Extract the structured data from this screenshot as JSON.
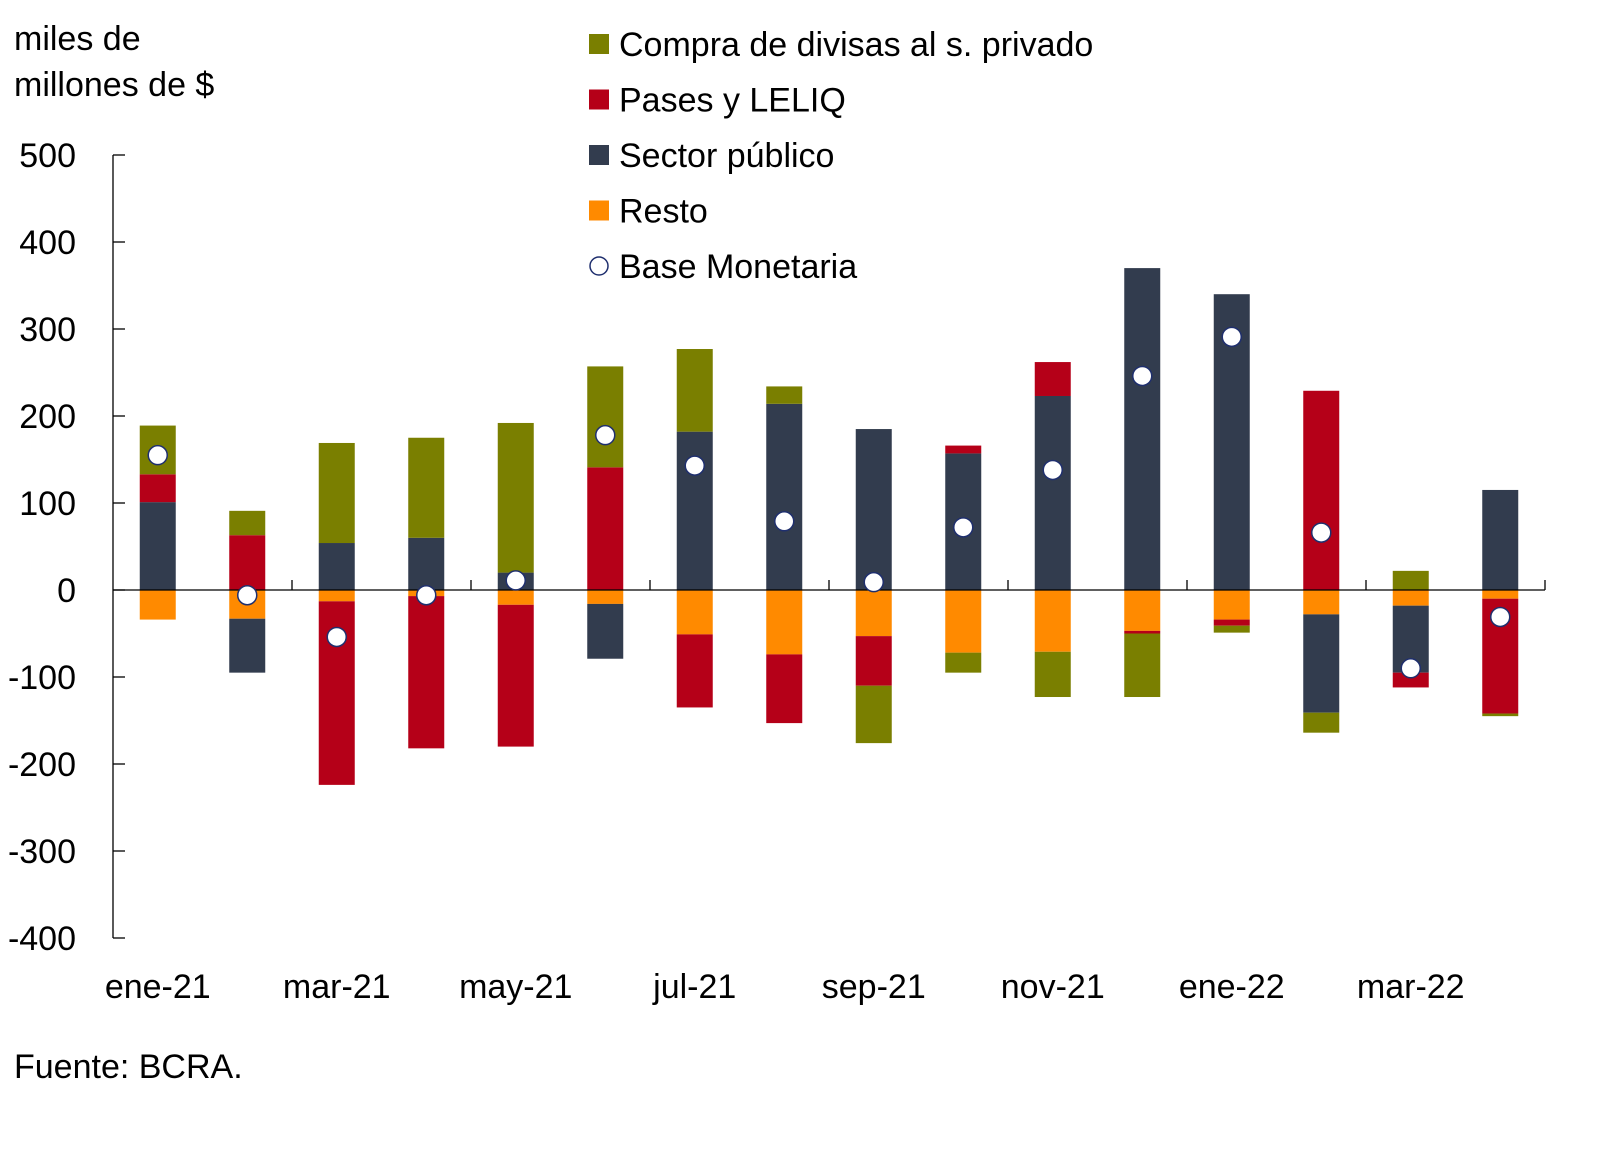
{
  "chart_data": {
    "type": "bar",
    "stacked": true,
    "ylabel_lines": [
      "miles de",
      "millones de $"
    ],
    "ylim": [
      -400,
      500
    ],
    "yticks": [
      500,
      400,
      300,
      200,
      100,
      0,
      -100,
      -200,
      -300,
      -400
    ],
    "tick_labels": [
      "ene-21",
      "mar-21",
      "may-21",
      "jul-21",
      "sep-21",
      "nov-21",
      "ene-22",
      "mar-22"
    ],
    "months_count": 16,
    "grid": false,
    "legend_placement": "top-center",
    "series": [
      {
        "name": "Compra de divisas al s. privado",
        "color": "#7a7f00",
        "kind": "bar",
        "values": [
          56,
          28,
          115,
          115,
          172,
          116,
          95,
          20,
          -66,
          -23,
          -52,
          -73,
          -8,
          -23,
          22,
          -3
        ]
      },
      {
        "name": "Pases y LELIQ",
        "color": "#b50018",
        "kind": "bar",
        "values": [
          32,
          63,
          -211,
          -175,
          -163,
          141,
          -84,
          -79,
          -57,
          9,
          39,
          -3,
          -7,
          229,
          -17,
          -132
        ]
      },
      {
        "name": "Sector público",
        "color": "#323c4e",
        "kind": "bar",
        "values": [
          101,
          -62,
          54,
          60,
          20,
          -63,
          182,
          214,
          185,
          157,
          223,
          370,
          340,
          -113,
          -77,
          115
        ]
      },
      {
        "name": "Resto",
        "color": "#ff8a00",
        "kind": "bar",
        "values": [
          -34,
          -33,
          -13,
          -7,
          -17,
          -16,
          -51,
          -74,
          -53,
          -72,
          -71,
          -47,
          -34,
          -28,
          -18,
          -10
        ]
      },
      {
        "name": "Base Monetaria",
        "color": "#1f2f6e",
        "kind": "marker",
        "values": [
          155,
          -6,
          -54,
          -6,
          11,
          178,
          143,
          79,
          9,
          72,
          138,
          246,
          291,
          66,
          -90,
          -31
        ]
      }
    ],
    "source": "Fuente: BCRA."
  }
}
